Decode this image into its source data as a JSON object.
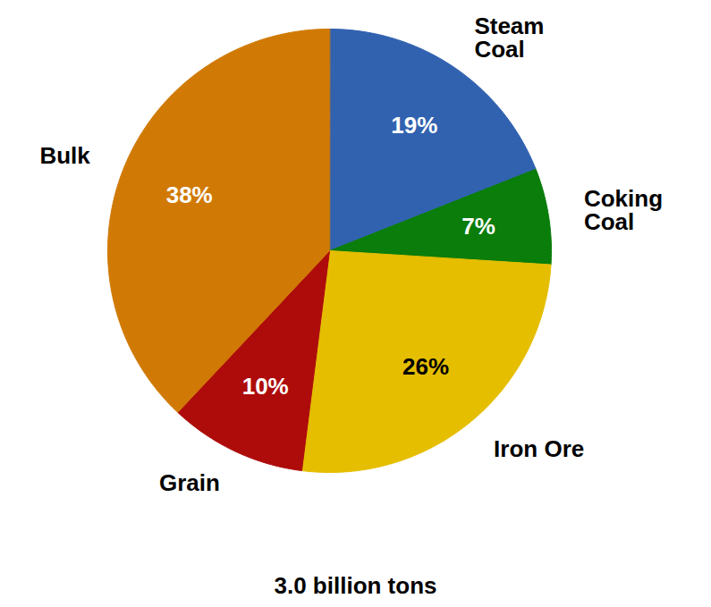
{
  "chart_data": {
    "type": "pie",
    "categories": [
      "Steam Coal",
      "Coking Coal",
      "Iron Ore",
      "Grain",
      "Bulk"
    ],
    "values": [
      19,
      7,
      26,
      10,
      38
    ],
    "value_labels": [
      "19%",
      "7%",
      "26%",
      "10%",
      "38%"
    ],
    "colors": [
      "#3162b0",
      "#0a7d0a",
      "#e5be00",
      "#ae0b0b",
      "#d07a05"
    ],
    "data_labels": true,
    "caption": "3.0 billion tons"
  }
}
